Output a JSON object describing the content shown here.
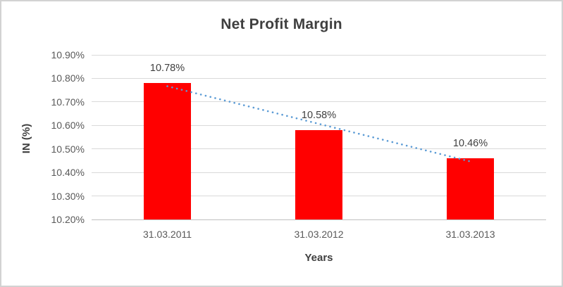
{
  "chart_data": {
    "type": "bar",
    "title": "Net Profit Margin",
    "xlabel": "Years",
    "ylabel": "IN (%)",
    "categories": [
      "31.03.2011",
      "31.03.2012",
      "31.03.2013"
    ],
    "values": [
      10.78,
      10.58,
      10.46
    ],
    "data_labels": [
      "10.78%",
      "10.58%",
      "10.46%"
    ],
    "y_ticks": {
      "values": [
        10.9,
        10.8,
        10.7,
        10.6,
        10.5,
        10.4,
        10.3,
        10.2
      ],
      "labels": [
        "10.90%",
        "10.80%",
        "10.70%",
        "10.60%",
        "10.50%",
        "10.40%",
        "10.30%",
        "10.20%"
      ]
    },
    "ylim": [
      10.2,
      10.9
    ],
    "grid": true,
    "legend": false,
    "bar_color": "#FF0000",
    "gridline_color": "#D9D9D9",
    "axis_line_color": "#BFBFBF",
    "text_color": "#3F3F3F",
    "tick_text_color": "#595959",
    "trendline": {
      "type": "linear",
      "style": "dotted",
      "color": "#5B9BD5"
    }
  }
}
